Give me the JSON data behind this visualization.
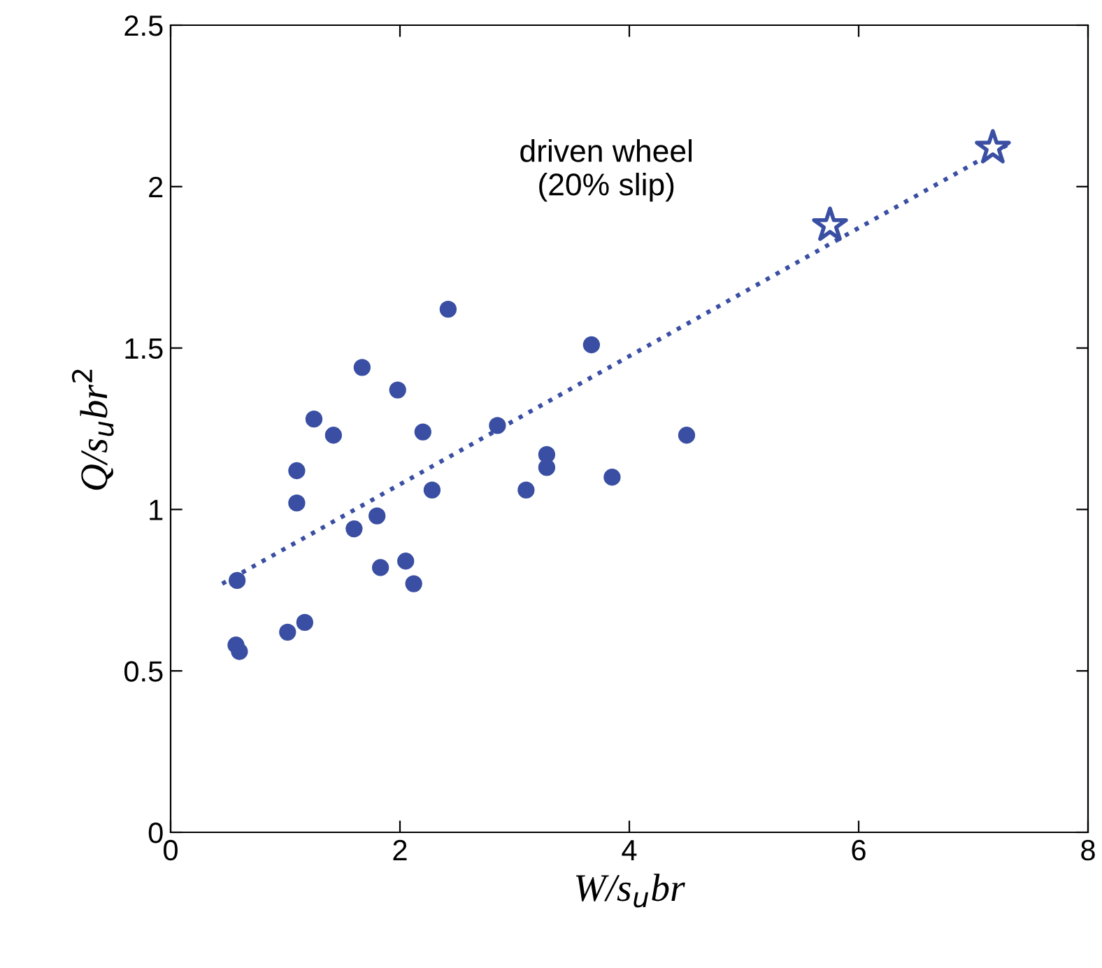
{
  "chart_data": {
    "type": "scatter",
    "xlabel": "W/s$_{u}$br",
    "ylabel": "Q/s$_{u}$br$^{2}$",
    "annotations": [
      "driven wheel\n(20% slip)"
    ],
    "xlim": [
      0,
      8
    ],
    "xticks": [
      0,
      2,
      4,
      6,
      8
    ],
    "ylim": [
      0,
      2.5
    ],
    "yticks": [
      0,
      0.5,
      1,
      1.5,
      2,
      2.5
    ],
    "grid": false,
    "legend": false,
    "series": [
      {
        "marker": "circle",
        "color": "#3a4fa3",
        "x": [
          0.58,
          0.57,
          0.6,
          1.02,
          1.17,
          1.1,
          1.1,
          1.25,
          1.42,
          1.6,
          1.67,
          1.8,
          1.83,
          1.98,
          2.05,
          2.12,
          2.2,
          2.28,
          2.42,
          2.85,
          3.1,
          3.28,
          3.28,
          3.67,
          3.85,
          4.5
        ],
        "values": [
          0.78,
          0.58,
          0.56,
          0.62,
          0.65,
          1.12,
          1.02,
          1.28,
          1.23,
          0.94,
          1.44,
          0.98,
          0.82,
          1.37,
          0.84,
          0.77,
          1.24,
          1.06,
          1.62,
          1.26,
          1.06,
          1.17,
          1.13,
          1.51,
          1.1,
          1.23
        ]
      },
      {
        "type": "scatter",
        "marker": "star",
        "color": "#3a4fa3",
        "x": [
          5.75,
          7.17
        ],
        "values": [
          1.88,
          2.12
        ]
      },
      {
        "type": "line",
        "line_style": "dotted",
        "marker": "none",
        "color": "#3a4fa3",
        "x": [
          0.45,
          7.3
        ],
        "values": [
          0.77,
          2.13
        ]
      }
    ]
  }
}
